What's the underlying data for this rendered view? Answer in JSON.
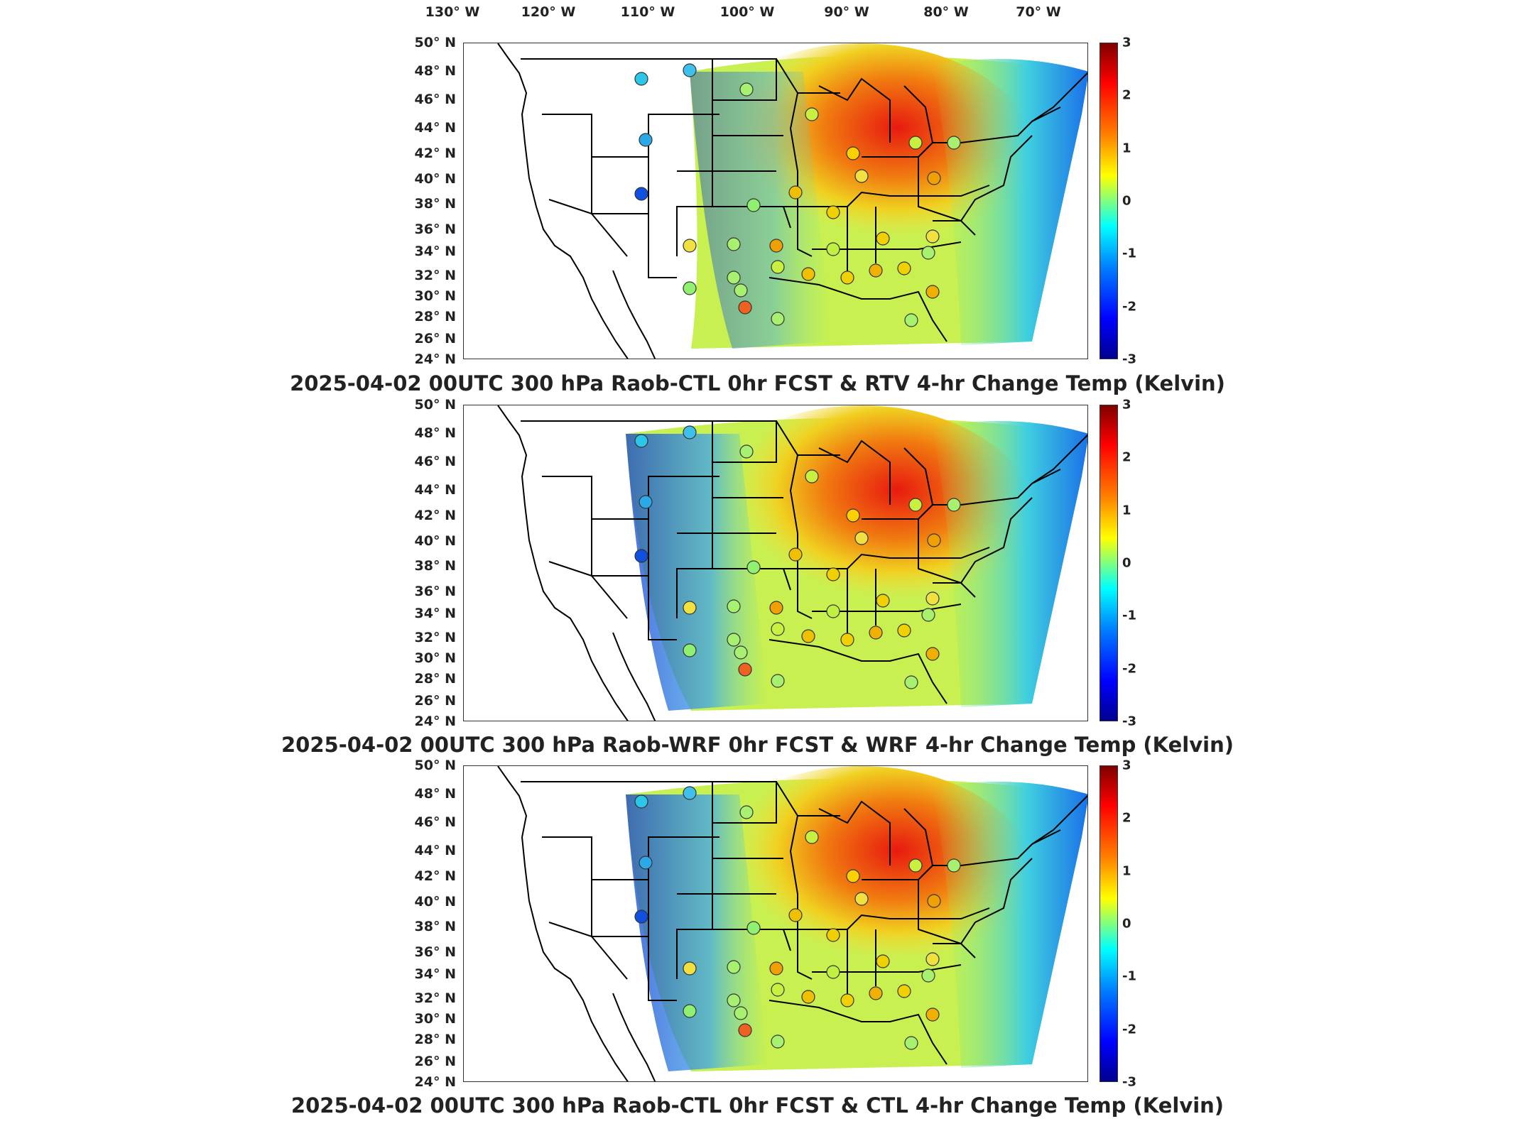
{
  "lon_labels": [
    "130° W",
    "120° W",
    "110° W",
    "100° W",
    "90° W",
    "80° W",
    "70° W"
  ],
  "lat_labels": [
    "50° N",
    "48° N",
    "46° N",
    "44° N",
    "42° N",
    "40° N",
    "38° N",
    "36° N",
    "34° N",
    "32° N",
    "30° N",
    "28° N",
    "26° N",
    "24° N"
  ],
  "colorbar_ticks": [
    "3",
    "2",
    "1",
    "0",
    "-1",
    "-2",
    "-3"
  ],
  "colorbar_range": [
    -3,
    3
  ],
  "colormap": "jet",
  "colors": {
    "background": "#ffffff",
    "border": "#333333",
    "state_lines": "#000000"
  },
  "panels": [
    {
      "title": "2025-04-02 00UTC 300 hPa Raob-CTL 0hr FCST & RTV 4-hr Change Temp (Kelvin)",
      "field_west_extent": "~106° W"
    },
    {
      "title": "2025-04-02 00UTC 300 hPa Raob-WRF 0hr FCST & WRF 4-hr Change Temp (Kelvin)",
      "field_west_extent": "~113° W"
    },
    {
      "title": "2025-04-02 00UTC 300 hPa Raob-CTL 0hr FCST & CTL 4-hr Change Temp (Kelvin)",
      "field_west_extent": "~113° W"
    }
  ]
}
